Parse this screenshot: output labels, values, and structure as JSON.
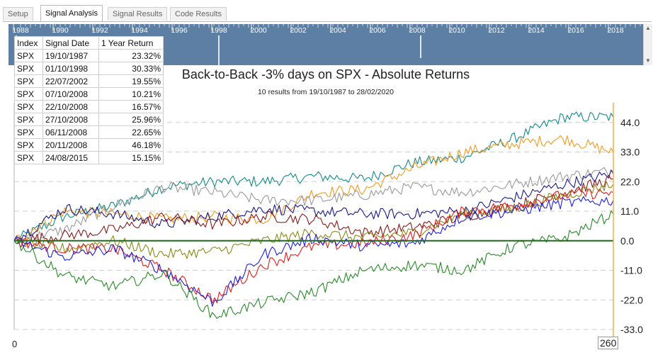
{
  "tabs": [
    {
      "label": "Setup",
      "active": false
    },
    {
      "label": "Signal Analysis",
      "active": true
    },
    {
      "label": "Signal Results",
      "active": false
    },
    {
      "label": "Code Results",
      "active": false
    }
  ],
  "timeline": {
    "years": [
      "1988",
      "1990",
      "1992",
      "1994",
      "1996",
      "1998",
      "2000",
      "2002",
      "2004",
      "2006",
      "2008",
      "2010",
      "2012",
      "2014",
      "2016",
      "2018"
    ],
    "background": "#5d7fa3"
  },
  "table": {
    "headers": [
      "Index",
      "Signal Date",
      "1 Year Return"
    ],
    "rows": [
      [
        "SPX",
        "19/10/1987",
        "23.32%"
      ],
      [
        "SPX",
        "01/10/1998",
        "30.33%"
      ],
      [
        "SPX",
        "22/07/2002",
        "19.55%"
      ],
      [
        "SPX",
        "07/10/2008",
        "10.21%"
      ],
      [
        "SPX",
        "22/10/2008",
        "16.57%"
      ],
      [
        "SPX",
        "27/10/2008",
        "25.96%"
      ],
      [
        "SPX",
        "06/11/2008",
        "22.65%"
      ],
      [
        "SPX",
        "20/11/2008",
        "46.18%"
      ],
      [
        "SPX",
        "24/08/2015",
        "15.15%"
      ]
    ]
  },
  "chart_data": {
    "type": "line",
    "title": "Back-to-Back -3% days on SPX - Absolute Returns",
    "subtitle": "10 results from 19/10/1987 to 28/02/2020",
    "x_range": [
      0,
      260
    ],
    "x_tick_labels": [
      "0",
      "260"
    ],
    "ylim": [
      -33,
      50
    ],
    "y_ticks": [
      44.0,
      33.0,
      22.0,
      11.0,
      0.0,
      -11.0,
      -22.0,
      -33.0
    ],
    "grid": true,
    "zero_line_color": "#1a6e1a",
    "series": [
      {
        "color": "#138a8a",
        "values": [
          0,
          9,
          13,
          20,
          22,
          22,
          24,
          23,
          29,
          31,
          38,
          46,
          46
        ]
      },
      {
        "color": "#f39a1e",
        "values": [
          0,
          11,
          10,
          8,
          9,
          8,
          18,
          19,
          27,
          33,
          36,
          38,
          33
        ]
      },
      {
        "color": "#9a9a9a",
        "values": [
          0,
          4,
          13,
          20,
          18,
          15,
          15,
          17,
          20,
          18,
          21,
          24,
          26
        ]
      },
      {
        "color": "#1a1a8c",
        "values": [
          0,
          12,
          10,
          6,
          9,
          12,
          11,
          10,
          10,
          11,
          16,
          21,
          25
        ]
      },
      {
        "color": "#8a1a1a",
        "values": [
          0,
          2,
          4,
          9,
          6,
          9,
          8,
          3,
          5,
          9,
          13,
          18,
          23
        ]
      },
      {
        "color": "#8a8a1a",
        "values": [
          0,
          -3,
          0,
          -5,
          -4,
          0,
          3,
          1,
          3,
          10,
          12,
          17,
          21
        ]
      },
      {
        "color": "#e51b1b",
        "values": [
          0,
          -3,
          -3,
          -11,
          -22,
          -9,
          -2,
          -1,
          2,
          11,
          13,
          17,
          18
        ]
      },
      {
        "color": "#1f1fe0",
        "values": [
          0,
          -6,
          -3,
          -11,
          -23,
          -5,
          1,
          -2,
          -1,
          9,
          11,
          14,
          15
        ]
      },
      {
        "color": "#2a8a2a",
        "values": [
          0,
          -13,
          -17,
          -12,
          -28,
          -23,
          -19,
          -11,
          -9,
          -11,
          -2,
          1,
          10
        ]
      }
    ],
    "right_axis_color": "#f0a030"
  }
}
